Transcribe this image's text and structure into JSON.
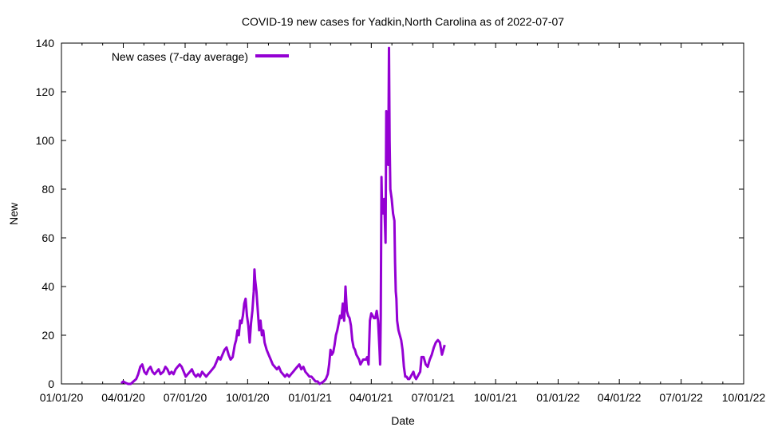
{
  "chart_data": {
    "type": "line",
    "title": "COVID-19 new cases for Yadkin,North Carolina as of 2022-07-07",
    "xlabel": "Date",
    "ylabel": "New",
    "ylim": [
      0,
      140
    ],
    "yticks": [
      0,
      20,
      40,
      60,
      80,
      100,
      120,
      140
    ],
    "xlim": [
      0,
      1004
    ],
    "xticks": [
      {
        "label": "01/01/20",
        "day": 0
      },
      {
        "label": "04/01/20",
        "day": 91
      },
      {
        "label": "07/01/20",
        "day": 182
      },
      {
        "label": "10/01/20",
        "day": 274
      },
      {
        "label": "01/01/21",
        "day": 366
      },
      {
        "label": "04/01/21",
        "day": 456
      },
      {
        "label": "07/01/21",
        "day": 547
      },
      {
        "label": "10/01/21",
        "day": 639
      },
      {
        "label": "01/01/22",
        "day": 731
      },
      {
        "label": "04/01/22",
        "day": 821
      },
      {
        "label": "07/01/22",
        "day": 912
      },
      {
        "label": "10/01/22",
        "day": 1004
      }
    ],
    "legend": {
      "position": "top-left",
      "entries": [
        "New cases (7-day average)"
      ]
    },
    "grid": false,
    "series": [
      {
        "name": "New cases (7-day average)",
        "color": "#9400d3",
        "points": [
          [
            88,
            0.3
          ],
          [
            91,
            1
          ],
          [
            94,
            0.5
          ],
          [
            98,
            0
          ],
          [
            102,
            0
          ],
          [
            106,
            1
          ],
          [
            110,
            2
          ],
          [
            113,
            4
          ],
          [
            116,
            7
          ],
          [
            119,
            8
          ],
          [
            122,
            5
          ],
          [
            125,
            4
          ],
          [
            128,
            6
          ],
          [
            131,
            7
          ],
          [
            134,
            5
          ],
          [
            137,
            4
          ],
          [
            140,
            5
          ],
          [
            143,
            6
          ],
          [
            146,
            4
          ],
          [
            150,
            5
          ],
          [
            153,
            7
          ],
          [
            156,
            6
          ],
          [
            159,
            4
          ],
          [
            162,
            5
          ],
          [
            165,
            4
          ],
          [
            168,
            6
          ],
          [
            171,
            7
          ],
          [
            174,
            8
          ],
          [
            177,
            7
          ],
          [
            180,
            5
          ],
          [
            183,
            3
          ],
          [
            186,
            4
          ],
          [
            189,
            5
          ],
          [
            192,
            6
          ],
          [
            195,
            4
          ],
          [
            198,
            3
          ],
          [
            201,
            4
          ],
          [
            204,
            3
          ],
          [
            207,
            5
          ],
          [
            210,
            4
          ],
          [
            213,
            3
          ],
          [
            216,
            4
          ],
          [
            219,
            5
          ],
          [
            222,
            6
          ],
          [
            225,
            7
          ],
          [
            228,
            9
          ],
          [
            231,
            11
          ],
          [
            234,
            10
          ],
          [
            237,
            12
          ],
          [
            240,
            14
          ],
          [
            243,
            15
          ],
          [
            246,
            12
          ],
          [
            249,
            10
          ],
          [
            252,
            11
          ],
          [
            255,
            16
          ],
          [
            257,
            18
          ],
          [
            259,
            22
          ],
          [
            261,
            20
          ],
          [
            263,
            26
          ],
          [
            265,
            25
          ],
          [
            267,
            28
          ],
          [
            269,
            33
          ],
          [
            271,
            35
          ],
          [
            273,
            28
          ],
          [
            275,
            24
          ],
          [
            277,
            17
          ],
          [
            279,
            25
          ],
          [
            281,
            30
          ],
          [
            283,
            38
          ],
          [
            284,
            47
          ],
          [
            285,
            43
          ],
          [
            287,
            38
          ],
          [
            289,
            30
          ],
          [
            291,
            22
          ],
          [
            293,
            26
          ],
          [
            295,
            20
          ],
          [
            297,
            22
          ],
          [
            299,
            17
          ],
          [
            302,
            14
          ],
          [
            305,
            12
          ],
          [
            308,
            10
          ],
          [
            311,
            8
          ],
          [
            314,
            7
          ],
          [
            317,
            6
          ],
          [
            320,
            7
          ],
          [
            323,
            5
          ],
          [
            326,
            4
          ],
          [
            329,
            3
          ],
          [
            332,
            4
          ],
          [
            335,
            3
          ],
          [
            338,
            4
          ],
          [
            341,
            5
          ],
          [
            344,
            6
          ],
          [
            347,
            7
          ],
          [
            350,
            8
          ],
          [
            353,
            6
          ],
          [
            356,
            7
          ],
          [
            359,
            5
          ],
          [
            362,
            4
          ],
          [
            365,
            3
          ],
          [
            368,
            3
          ],
          [
            371,
            2
          ],
          [
            374,
            1
          ],
          [
            377,
            1
          ],
          [
            380,
            0
          ],
          [
            383,
            0.5
          ],
          [
            386,
            1
          ],
          [
            389,
            2
          ],
          [
            392,
            4
          ],
          [
            394,
            8
          ],
          [
            396,
            14
          ],
          [
            398,
            12
          ],
          [
            400,
            13
          ],
          [
            402,
            16
          ],
          [
            404,
            20
          ],
          [
            406,
            22
          ],
          [
            408,
            25
          ],
          [
            410,
            28
          ],
          [
            412,
            27
          ],
          [
            414,
            33
          ],
          [
            416,
            26
          ],
          [
            418,
            40
          ],
          [
            420,
            30
          ],
          [
            422,
            28
          ],
          [
            424,
            27
          ],
          [
            426,
            24
          ],
          [
            428,
            18
          ],
          [
            430,
            15
          ],
          [
            432,
            14
          ],
          [
            434,
            12
          ],
          [
            436,
            11
          ],
          [
            438,
            10
          ],
          [
            440,
            8
          ],
          [
            442,
            9
          ],
          [
            444,
            10
          ],
          [
            446,
            10
          ],
          [
            448,
            10
          ],
          [
            450,
            11
          ],
          [
            452,
            8
          ],
          [
            454,
            26
          ],
          [
            456,
            29
          ],
          [
            458,
            28
          ],
          [
            460,
            27
          ],
          [
            462,
            27
          ],
          [
            464,
            30
          ],
          [
            466,
            26
          ],
          [
            468,
            15
          ],
          [
            469,
            8
          ],
          [
            470,
            28
          ],
          [
            471,
            85
          ],
          [
            472,
            70
          ],
          [
            473,
            72
          ],
          [
            474,
            70
          ],
          [
            475,
            76
          ],
          [
            476,
            66
          ],
          [
            477,
            58
          ],
          [
            478,
            112
          ],
          [
            479,
            95
          ],
          [
            480,
            110
          ],
          [
            481,
            90
          ],
          [
            482,
            138
          ],
          [
            483,
            100
          ],
          [
            484,
            80
          ],
          [
            486,
            76
          ],
          [
            488,
            70
          ],
          [
            490,
            67
          ],
          [
            491,
            50
          ],
          [
            492,
            38
          ],
          [
            493,
            35
          ],
          [
            494,
            26
          ],
          [
            496,
            22
          ],
          [
            498,
            20
          ],
          [
            500,
            18
          ],
          [
            502,
            14
          ],
          [
            504,
            7
          ],
          [
            506,
            3
          ],
          [
            508,
            3
          ],
          [
            510,
            2
          ],
          [
            512,
            2
          ],
          [
            514,
            3
          ],
          [
            516,
            4
          ],
          [
            518,
            5
          ],
          [
            520,
            3
          ],
          [
            522,
            2
          ],
          [
            524,
            3
          ],
          [
            526,
            4
          ],
          [
            528,
            5
          ],
          [
            530,
            11
          ],
          [
            533,
            11
          ],
          [
            536,
            8
          ],
          [
            539,
            7
          ],
          [
            542,
            10
          ],
          [
            545,
            12
          ],
          [
            548,
            15
          ],
          [
            551,
            17
          ],
          [
            554,
            18
          ],
          [
            557,
            17
          ],
          [
            560,
            12
          ],
          [
            562,
            14
          ],
          [
            564,
            16
          ]
        ]
      }
    ]
  }
}
